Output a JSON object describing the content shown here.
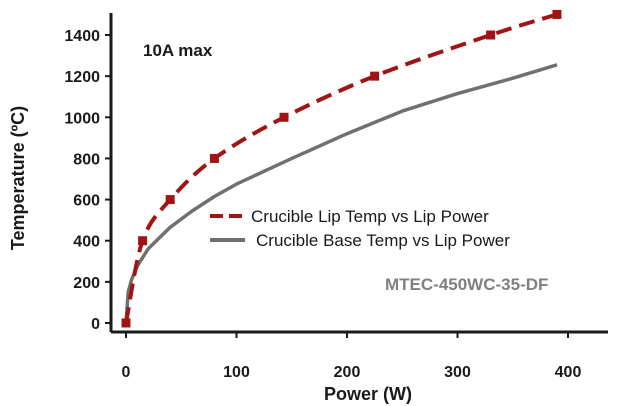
{
  "chart_data": {
    "type": "line",
    "title": "",
    "xlabel": "Power (W)",
    "ylabel": "Temperature (ºC)",
    "xlim": [
      0,
      420
    ],
    "ylim": [
      0,
      1500
    ],
    "xticks": [
      0,
      100,
      200,
      300,
      400
    ],
    "yticks": [
      0,
      200,
      400,
      600,
      800,
      1000,
      1200,
      1400
    ],
    "annotations": [
      "10A max",
      "MTEC-450WC-35-DF"
    ],
    "legend_position": "center-right",
    "series": [
      {
        "name": "Crucible Lip Temp vs Lip Power",
        "color": "#a01414",
        "style": "dashed-with-square-markers",
        "x": [
          0,
          15,
          40,
          80,
          143,
          225,
          330,
          390
        ],
        "y": [
          0,
          400,
          600,
          800,
          1000,
          1200,
          1400,
          1500
        ]
      },
      {
        "name": "Crucible Base Temp vs Lip Power",
        "color": "#707070",
        "style": "solid",
        "x": [
          0,
          2,
          5,
          10,
          20,
          40,
          60,
          80,
          100,
          150,
          200,
          250,
          300,
          350,
          390
        ],
        "y": [
          0,
          150,
          210,
          275,
          360,
          465,
          545,
          615,
          675,
          800,
          920,
          1030,
          1115,
          1190,
          1255
        ]
      }
    ]
  }
}
